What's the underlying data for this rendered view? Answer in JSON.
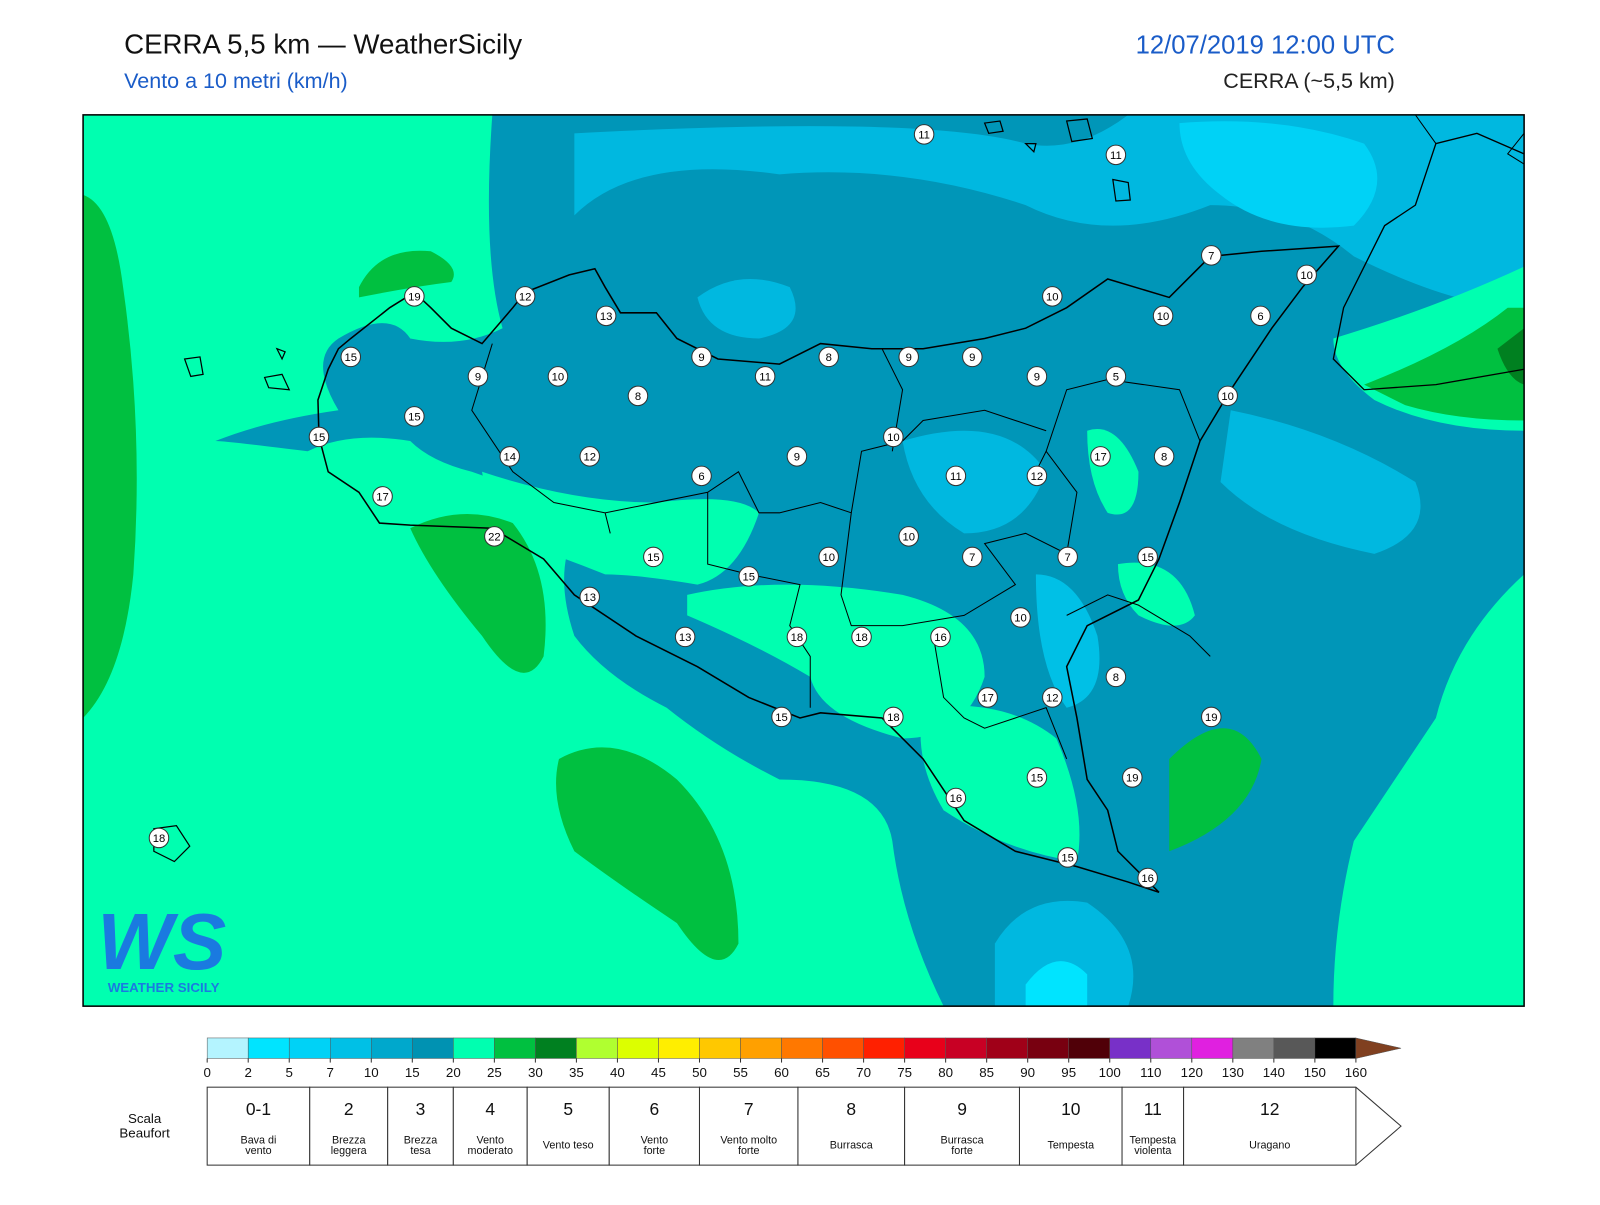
{
  "header": {
    "title": "CERRA 5,5 km — WeatherSicily",
    "subtitle": "Vento a 10 metri (km/h)",
    "datetime": "12/07/2019 12:00 UTC",
    "model": "CERRA (~5,5 km)"
  },
  "stations": [
    11,
    11,
    7,
    10,
    19,
    12,
    10,
    13,
    10,
    6,
    15,
    9,
    8,
    9,
    9,
    9,
    10,
    11,
    9,
    5,
    8,
    10,
    15,
    15,
    10,
    14,
    12,
    9,
    17,
    8,
    6,
    11,
    12,
    17,
    22,
    10,
    15,
    10,
    7,
    7,
    15,
    15,
    13,
    10,
    13,
    18,
    18,
    16,
    8,
    17,
    12,
    19,
    15,
    18,
    15,
    19,
    16,
    18,
    15,
    16
  ],
  "colorbar": {
    "ticks": [
      0,
      2,
      5,
      7,
      10,
      15,
      20,
      25,
      30,
      35,
      40,
      45,
      50,
      55,
      60,
      65,
      70,
      75,
      80,
      85,
      90,
      95,
      100,
      110,
      120,
      130,
      140,
      150,
      160
    ],
    "colors": [
      "#b4f4ff",
      "#00e4ff",
      "#00d2f6",
      "#00c0e6",
      "#00a8cc",
      "#0092b2",
      "#00ffb0",
      "#00c040",
      "#008020",
      "#b0ff30",
      "#dcff00",
      "#ffee00",
      "#ffc800",
      "#ffa000",
      "#ff7800",
      "#ff5000",
      "#ff2000",
      "#e8001a",
      "#c80024",
      "#a00018",
      "#780010",
      "#500008",
      "#7830c8",
      "#b050d8",
      "#e020e0",
      "#808080",
      "#585858",
      "#000000",
      "#804020",
      "#c88040"
    ]
  },
  "beaufort": {
    "title": [
      "Scala",
      "Beaufort"
    ],
    "levels": [
      {
        "force": "0-1",
        "description": [
          "Bava di",
          "vento"
        ]
      },
      {
        "force": 2,
        "description": [
          "Brezza",
          "leggera"
        ]
      },
      {
        "force": 3,
        "description": [
          "Brezza",
          "tesa"
        ]
      },
      {
        "force": 4,
        "description": [
          "Vento",
          "moderato"
        ]
      },
      {
        "force": 5,
        "description": [
          "Vento teso"
        ]
      },
      {
        "force": 6,
        "description": [
          "Vento",
          "forte"
        ]
      },
      {
        "force": 7,
        "description": [
          "Vento molto",
          "forte"
        ]
      },
      {
        "force": 8,
        "description": [
          "Burrasca"
        ]
      },
      {
        "force": 9,
        "description": [
          "Burrasca",
          "forte"
        ]
      },
      {
        "force": 10,
        "description": [
          "Tempesta"
        ]
      },
      {
        "force": 11,
        "description": [
          "Tempesta",
          "violenta"
        ]
      },
      {
        "force": 12,
        "description": [
          "Uragano"
        ]
      }
    ]
  },
  "logo": {
    "mark": "WS",
    "name": "WEATHER SICILY"
  }
}
